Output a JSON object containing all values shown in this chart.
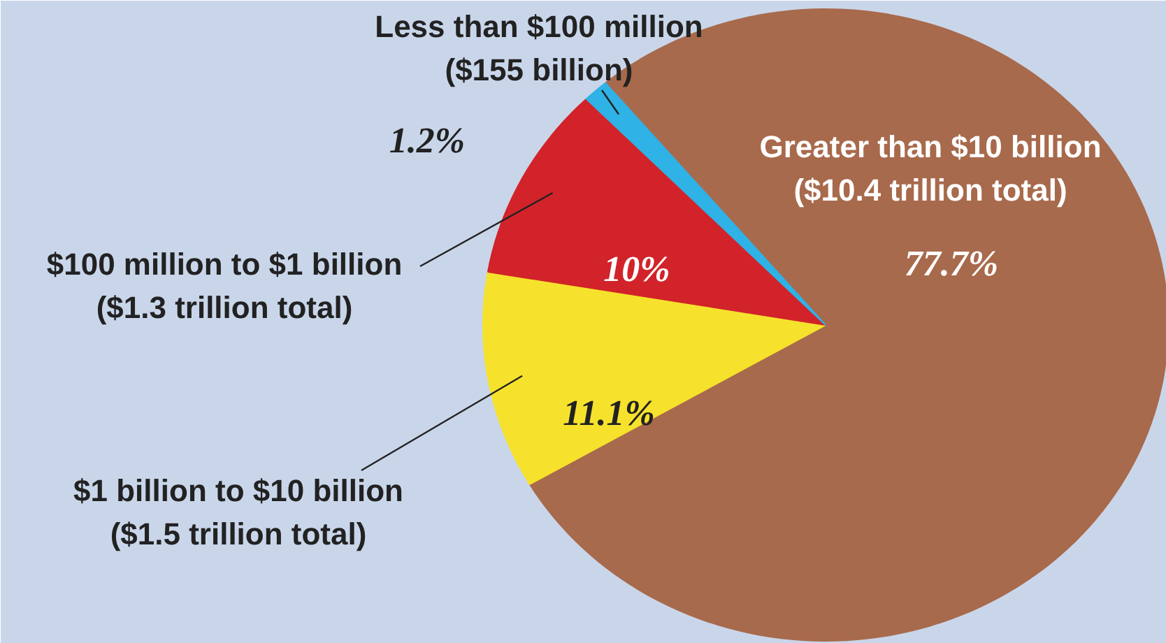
{
  "chart_data": {
    "type": "pie",
    "categories": [
      "Greater than $10 billion\n($10.4 trillion total)",
      "$1 billion to $10 billion\n($1.5 trillion total)",
      "$100 million to $1 billion\n($1.3 trillion total)",
      "Less than $100 million\n($155 billion)"
    ],
    "values": [
      77.7,
      11.1,
      10,
      1.2
    ],
    "colors": [
      "#a86a4c",
      "#f6e22c",
      "#d2232a",
      "#2fb2e6"
    ],
    "value_labels": [
      "77.7%",
      "11.1%",
      "10%",
      "1.2%"
    ]
  }
}
